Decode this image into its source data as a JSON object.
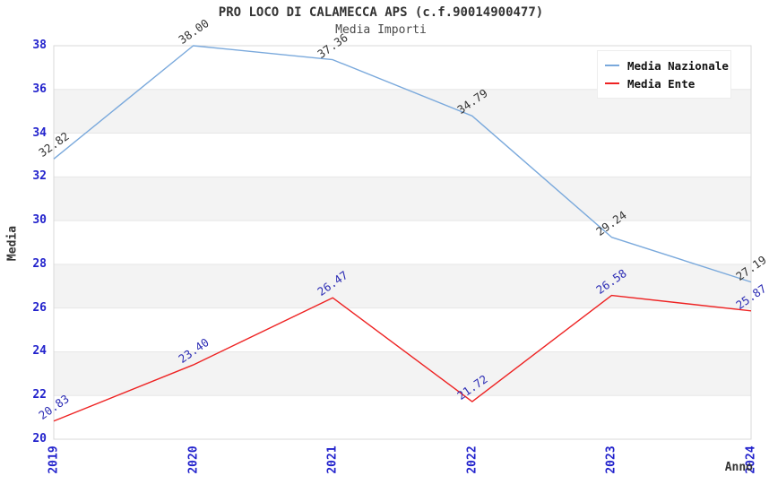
{
  "title": "PRO LOCO DI CALAMECCA APS (c.f.90014900477)",
  "subtitle": "Media Importi",
  "chart_data": {
    "type": "line",
    "x": [
      "2019",
      "2020",
      "2021",
      "2022",
      "2023",
      "2024"
    ],
    "xlabel": "Anno",
    "ylabel": "Media",
    "ylim": [
      20,
      38
    ],
    "yticks": [
      "38",
      "36",
      "34",
      "32",
      "30",
      "28",
      "26",
      "24",
      "22",
      "20"
    ],
    "grid": "horizontal gridlines with alternating shaded bands",
    "legend_position": "top-right",
    "series": [
      {
        "name": "Media Nazionale",
        "color": "#7aa9dc",
        "label_color": "#333333",
        "values": [
          32.82,
          38.0,
          37.36,
          34.79,
          29.24,
          27.19
        ],
        "labels": [
          "32.82",
          "38.00",
          "37.36",
          "34.79",
          "29.24",
          "27.19"
        ]
      },
      {
        "name": "Media Ente",
        "color": "#ee2222",
        "label_color": "#2b2bb4",
        "values": [
          20.83,
          23.4,
          26.47,
          21.72,
          26.58,
          25.87
        ],
        "labels": [
          "20.83",
          "23.40",
          "26.47",
          "21.72",
          "26.58",
          "25.87"
        ]
      }
    ]
  },
  "colors": {
    "tick_label": "#2222cc",
    "band": "#f3f3f3",
    "gridline": "#e7e7e7",
    "plot_border": "#d9d9d9",
    "title_text": "#333333",
    "legend_bg": "#ffffff"
  }
}
